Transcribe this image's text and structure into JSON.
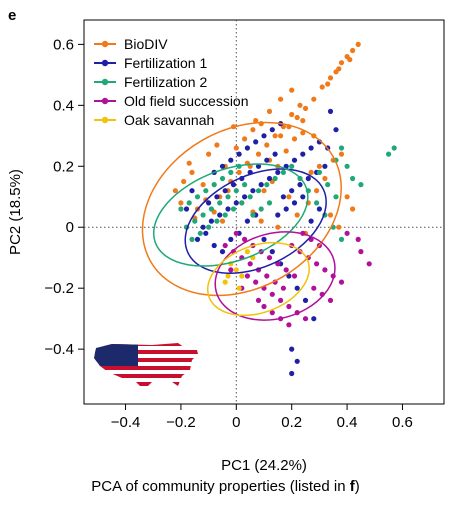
{
  "panel_letter": "e",
  "caption": {
    "prefix": "PCA of community properties (listed in ",
    "bold": "f",
    "suffix": ")"
  },
  "chart_data": {
    "type": "scatter",
    "xlabel": "PC1 (24.2%)",
    "ylabel": "PC2 (18.5%)",
    "xlim": [
      -0.55,
      0.75
    ],
    "ylim": [
      -0.58,
      0.68
    ],
    "xticks": [
      -0.4,
      -0.2,
      0,
      0.2,
      0.4,
      0.6
    ],
    "xtick_labels": [
      "−0.4",
      "−0.2",
      "0",
      "0.2",
      "0.4",
      "0.6"
    ],
    "yticks": [
      -0.4,
      -0.2,
      0,
      0.2,
      0.4,
      0.6
    ],
    "ytick_labels": [
      "−0.4",
      "−0.2",
      "0",
      "0.2",
      "0.4",
      "0.6"
    ],
    "grid": false,
    "reference_lines": {
      "x": 0,
      "y": 0,
      "style": "dotted"
    },
    "legend_position": "top-left",
    "inset_icon": "usa-flag-map-icon",
    "series": [
      {
        "name": "BioDIV",
        "color": "#f07a1a",
        "ellipse": {
          "cx": 0.02,
          "cy": 0.06,
          "rx": 0.38,
          "ry": 0.26,
          "angle_deg": 30
        },
        "points": [
          [
            0.16,
            0.3
          ],
          [
            0.19,
            0.33
          ],
          [
            0.22,
            0.36
          ],
          [
            0.25,
            0.39
          ],
          [
            0.28,
            0.42
          ],
          [
            0.31,
            0.46
          ],
          [
            0.34,
            0.49
          ],
          [
            0.36,
            0.51
          ],
          [
            0.38,
            0.54
          ],
          [
            0.4,
            0.56
          ],
          [
            0.42,
            0.58
          ],
          [
            0.44,
            0.6
          ],
          [
            0.41,
            0.55
          ],
          [
            0.37,
            0.52
          ],
          [
            0.33,
            0.47
          ],
          [
            0.05,
            0.2
          ],
          [
            0.08,
            0.24
          ],
          [
            0.11,
            0.27
          ],
          [
            0.14,
            0.3
          ],
          [
            0.17,
            0.33
          ],
          [
            0.2,
            0.37
          ],
          [
            0.23,
            0.4
          ],
          [
            0.0,
            0.26
          ],
          [
            0.03,
            0.29
          ],
          [
            0.06,
            0.32
          ],
          [
            0.09,
            0.34
          ],
          [
            -0.1,
            0.24
          ],
          [
            -0.07,
            0.27
          ],
          [
            0.1,
            0.12
          ],
          [
            0.13,
            0.15
          ],
          [
            -0.02,
            0.15
          ],
          [
            0.01,
            0.18
          ],
          [
            0.04,
            0.21
          ],
          [
            -0.06,
            0.1
          ],
          [
            -0.03,
            0.12
          ],
          [
            0.12,
            0.22
          ],
          [
            0.15,
            0.2
          ],
          [
            -0.22,
            0.12
          ],
          [
            -0.19,
            0.15
          ],
          [
            -0.16,
            0.18
          ],
          [
            -0.14,
            0.06
          ],
          [
            -0.11,
            0.09
          ],
          [
            -0.18,
            0.0
          ],
          [
            -0.15,
            0.03
          ],
          [
            -0.2,
            0.08
          ],
          [
            -0.12,
            0.14
          ],
          [
            -0.08,
            0.18
          ],
          [
            -0.04,
            0.2
          ],
          [
            0.18,
            0.25
          ],
          [
            0.21,
            0.29
          ],
          [
            0.24,
            0.31
          ],
          [
            0.27,
            0.18
          ],
          [
            0.3,
            0.2
          ],
          [
            0.32,
            0.16
          ],
          [
            0.35,
            0.22
          ],
          [
            0.38,
            0.24
          ],
          [
            0.4,
            0.1
          ],
          [
            0.42,
            0.06
          ],
          [
            0.26,
            0.08
          ],
          [
            0.29,
            0.12
          ],
          [
            0.34,
            0.04
          ],
          [
            0.37,
            0.0
          ],
          [
            0.25,
            -0.02
          ],
          [
            0.22,
            0.04
          ],
          [
            0.19,
            0.1
          ],
          [
            -0.05,
            0.02
          ],
          [
            -0.08,
            0.05
          ],
          [
            0.02,
            0.08
          ],
          [
            0.06,
            0.05
          ],
          [
            0.09,
            0.02
          ],
          [
            0.15,
            0.0
          ],
          [
            -0.17,
            0.21
          ],
          [
            0.07,
            0.35
          ],
          [
            0.12,
            0.38
          ],
          [
            -0.01,
            0.33
          ],
          [
            0.16,
            0.42
          ],
          [
            0.2,
            0.45
          ],
          [
            0.24,
            0.35
          ],
          [
            0.28,
            0.3
          ]
        ]
      },
      {
        "name": "Fertilization 1",
        "color": "#1f1fa8",
        "ellipse": {
          "cx": 0.07,
          "cy": 0.02,
          "rx": 0.27,
          "ry": 0.15,
          "angle_deg": 25
        },
        "points": [
          [
            -0.08,
            0.18
          ],
          [
            -0.05,
            0.2
          ],
          [
            -0.02,
            0.22
          ],
          [
            0.01,
            0.24
          ],
          [
            0.04,
            0.26
          ],
          [
            0.07,
            0.28
          ],
          [
            0.1,
            0.3
          ],
          [
            0.13,
            0.32
          ],
          [
            0.16,
            0.34
          ],
          [
            -0.1,
            0.08
          ],
          [
            -0.07,
            0.1
          ],
          [
            -0.04,
            0.12
          ],
          [
            -0.01,
            0.14
          ],
          [
            0.02,
            0.16
          ],
          [
            0.05,
            0.18
          ],
          [
            0.08,
            0.2
          ],
          [
            0.11,
            0.22
          ],
          [
            0.14,
            0.24
          ],
          [
            -0.12,
            0.0
          ],
          [
            -0.09,
            0.02
          ],
          [
            -0.06,
            0.04
          ],
          [
            -0.03,
            0.06
          ],
          [
            0.0,
            0.08
          ],
          [
            0.03,
            0.1
          ],
          [
            0.06,
            0.12
          ],
          [
            0.09,
            0.14
          ],
          [
            0.12,
            0.16
          ],
          [
            0.15,
            0.18
          ],
          [
            0.18,
            0.2
          ],
          [
            0.21,
            0.22
          ],
          [
            0.24,
            0.24
          ],
          [
            0.27,
            0.26
          ],
          [
            0.3,
            0.28
          ],
          [
            0.17,
            0.1
          ],
          [
            0.2,
            0.12
          ],
          [
            0.23,
            0.14
          ],
          [
            0.26,
            0.16
          ],
          [
            0.29,
            0.18
          ],
          [
            0.32,
            0.2
          ],
          [
            0.15,
            0.04
          ],
          [
            0.18,
            0.06
          ],
          [
            0.21,
            0.08
          ],
          [
            0.24,
            0.1
          ],
          [
            0.27,
            0.02
          ],
          [
            0.3,
            0.06
          ],
          [
            -0.14,
            -0.04
          ],
          [
            -0.11,
            -0.02
          ],
          [
            -0.08,
            -0.06
          ],
          [
            -0.05,
            -0.08
          ],
          [
            -0.02,
            -0.04
          ],
          [
            0.01,
            -0.02
          ],
          [
            0.04,
            0.02
          ],
          [
            0.07,
            0.04
          ],
          [
            0.1,
            -0.04
          ],
          [
            0.13,
            -0.08
          ],
          [
            0.16,
            -0.12
          ],
          [
            0.19,
            -0.16
          ],
          [
            0.22,
            -0.2
          ],
          [
            0.25,
            -0.24
          ],
          [
            0.28,
            -0.3
          ],
          [
            0.2,
            -0.4
          ],
          [
            0.22,
            -0.44
          ],
          [
            0.2,
            -0.48
          ],
          [
            0.34,
            0.38
          ],
          [
            0.36,
            0.32
          ],
          [
            0.33,
            0.26
          ],
          [
            -0.18,
            0.06
          ],
          [
            -0.16,
            0.12
          ]
        ]
      },
      {
        "name": "Fertilization 2",
        "color": "#1fa878",
        "ellipse": {
          "cx": -0.02,
          "cy": 0.04,
          "rx": 0.29,
          "ry": 0.15,
          "angle_deg": 20
        },
        "points": [
          [
            -0.2,
            0.06
          ],
          [
            -0.17,
            0.08
          ],
          [
            -0.14,
            0.1
          ],
          [
            -0.11,
            0.12
          ],
          [
            -0.08,
            0.14
          ],
          [
            -0.05,
            0.16
          ],
          [
            -0.02,
            0.18
          ],
          [
            0.01,
            0.2
          ],
          [
            -0.18,
            0.0
          ],
          [
            -0.15,
            0.02
          ],
          [
            -0.12,
            0.04
          ],
          [
            -0.09,
            0.06
          ],
          [
            -0.06,
            0.08
          ],
          [
            -0.03,
            0.1
          ],
          [
            0.0,
            0.12
          ],
          [
            0.03,
            0.14
          ],
          [
            -0.16,
            -0.04
          ],
          [
            -0.13,
            -0.02
          ],
          [
            -0.1,
            0.0
          ],
          [
            -0.07,
            0.02
          ],
          [
            -0.04,
            0.04
          ],
          [
            -0.01,
            0.06
          ],
          [
            0.02,
            0.08
          ],
          [
            0.05,
            0.1
          ],
          [
            0.08,
            0.12
          ],
          [
            0.11,
            0.14
          ],
          [
            0.14,
            0.16
          ],
          [
            0.17,
            0.18
          ],
          [
            0.2,
            0.2
          ],
          [
            0.23,
            0.16
          ],
          [
            0.26,
            0.12
          ],
          [
            0.29,
            0.08
          ],
          [
            0.32,
            0.04
          ],
          [
            0.35,
            0.0
          ],
          [
            0.38,
            -0.04
          ],
          [
            0.36,
            0.1
          ],
          [
            0.33,
            0.14
          ],
          [
            0.3,
            0.18
          ],
          [
            0.4,
            0.2
          ],
          [
            0.42,
            0.16
          ],
          [
            0.45,
            0.14
          ],
          [
            0.38,
            0.26
          ],
          [
            0.36,
            0.22
          ],
          [
            0.55,
            0.24
          ],
          [
            0.57,
            0.26
          ],
          [
            0.06,
            0.04
          ],
          [
            0.09,
            0.06
          ],
          [
            0.12,
            0.08
          ]
        ]
      },
      {
        "name": "Old field succession",
        "color": "#b0109a",
        "ellipse": {
          "cx": 0.14,
          "cy": -0.16,
          "rx": 0.22,
          "ry": 0.14,
          "angle_deg": 15
        },
        "points": [
          [
            -0.04,
            -0.06
          ],
          [
            -0.01,
            -0.08
          ],
          [
            0.02,
            -0.1
          ],
          [
            0.05,
            -0.12
          ],
          [
            0.08,
            -0.14
          ],
          [
            0.11,
            -0.16
          ],
          [
            0.14,
            -0.18
          ],
          [
            0.17,
            -0.2
          ],
          [
            0.0,
            -0.02
          ],
          [
            0.03,
            -0.04
          ],
          [
            0.06,
            -0.06
          ],
          [
            0.09,
            -0.08
          ],
          [
            0.12,
            -0.1
          ],
          [
            0.15,
            -0.12
          ],
          [
            0.18,
            -0.14
          ],
          [
            0.21,
            -0.16
          ],
          [
            0.04,
            -0.16
          ],
          [
            0.07,
            -0.18
          ],
          [
            0.1,
            -0.2
          ],
          [
            0.13,
            -0.22
          ],
          [
            0.16,
            -0.24
          ],
          [
            0.19,
            -0.26
          ],
          [
            0.22,
            -0.28
          ],
          [
            0.25,
            -0.3
          ],
          [
            0.2,
            -0.06
          ],
          [
            0.23,
            -0.08
          ],
          [
            0.26,
            -0.1
          ],
          [
            0.29,
            -0.12
          ],
          [
            0.32,
            -0.14
          ],
          [
            0.35,
            -0.16
          ],
          [
            0.38,
            -0.18
          ],
          [
            0.28,
            -0.2
          ],
          [
            0.31,
            -0.22
          ],
          [
            0.34,
            -0.24
          ],
          [
            0.1,
            -0.26
          ],
          [
            0.13,
            -0.28
          ],
          [
            0.16,
            -0.3
          ],
          [
            0.19,
            -0.32
          ],
          [
            0.08,
            -0.24
          ],
          [
            0.24,
            -0.02
          ],
          [
            0.27,
            -0.04
          ],
          [
            0.3,
            -0.06
          ],
          [
            0.45,
            -0.08
          ],
          [
            0.48,
            -0.12
          ],
          [
            0.4,
            -0.02
          ],
          [
            0.44,
            -0.04
          ],
          [
            0.02,
            -0.2
          ],
          [
            -0.02,
            -0.14
          ]
        ]
      },
      {
        "name": "Oak savannah",
        "color": "#f2c20c",
        "ellipse": {
          "cx": 0.08,
          "cy": -0.17,
          "rx": 0.19,
          "ry": 0.11,
          "angle_deg": 20
        },
        "points": [
          [
            -0.02,
            -0.12
          ],
          [
            0.0,
            -0.14
          ],
          [
            0.02,
            -0.16
          ],
          [
            -0.04,
            -0.18
          ],
          [
            0.04,
            -0.08
          ],
          [
            0.06,
            -0.1
          ],
          [
            -0.03,
            -0.16
          ],
          [
            0.01,
            -0.2
          ]
        ]
      }
    ]
  }
}
